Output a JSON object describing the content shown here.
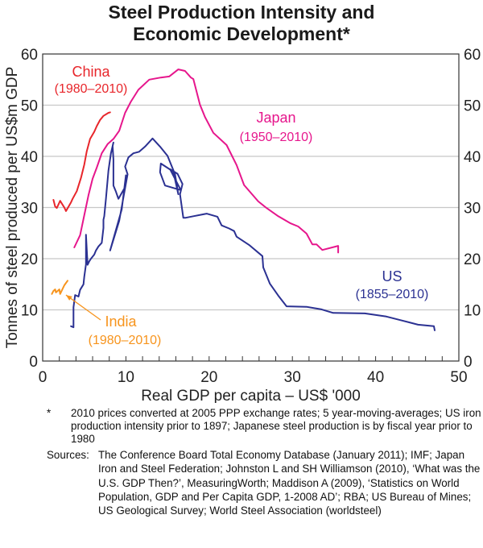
{
  "chart_data": {
    "type": "line",
    "title": "Steel Production Intensity and Economic Development*",
    "title_lines": [
      "Steel Production Intensity and",
      "Economic Development*"
    ],
    "xlabel": "Real GDP per capita – US$ '000",
    "ylabel": "Tonnes of steel produced per US$m GDP",
    "xlim": [
      0,
      50
    ],
    "ylim": [
      0,
      60
    ],
    "x_ticks": [
      0,
      10,
      20,
      30,
      40,
      50
    ],
    "x_minor_step": 2,
    "y_ticks": [
      0,
      10,
      20,
      30,
      40,
      50,
      60
    ],
    "grid": "horizontal",
    "right_axis_mirrors_left": true,
    "series": [
      {
        "name": "China",
        "label": "China",
        "period": "(1980–2010)",
        "color": "#e8262b",
        "points": [
          [
            1.3,
            31.5
          ],
          [
            1.5,
            30.2
          ],
          [
            1.7,
            29.9
          ],
          [
            2.1,
            31.3
          ],
          [
            2.6,
            30.0
          ],
          [
            2.8,
            29.3
          ],
          [
            3.4,
            31.0
          ],
          [
            3.6,
            31.7
          ],
          [
            4.1,
            33.2
          ],
          [
            4.6,
            35.8
          ],
          [
            5.0,
            38.4
          ],
          [
            5.3,
            41.0
          ],
          [
            5.7,
            43.4
          ],
          [
            6.2,
            44.8
          ],
          [
            6.5,
            45.9
          ],
          [
            6.9,
            47.1
          ],
          [
            7.3,
            47.9
          ],
          [
            7.9,
            48.5
          ],
          [
            8.1,
            48.6
          ]
        ]
      },
      {
        "name": "Japan",
        "label": "Japan",
        "period": "(1950–2010)",
        "color": "#e6168c",
        "points": [
          [
            3.8,
            22.2
          ],
          [
            4.5,
            24.6
          ],
          [
            5.0,
            28.5
          ],
          [
            5.5,
            32.4
          ],
          [
            6.0,
            35.6
          ],
          [
            6.5,
            37.8
          ],
          [
            7.1,
            40.6
          ],
          [
            7.8,
            42.4
          ],
          [
            8.5,
            43.4
          ],
          [
            9.2,
            45.0
          ],
          [
            9.9,
            48.5
          ],
          [
            10.6,
            50.7
          ],
          [
            11.5,
            53.0
          ],
          [
            12.8,
            55.0
          ],
          [
            14.2,
            55.4
          ],
          [
            15.2,
            55.6
          ],
          [
            16.3,
            57.0
          ],
          [
            17.1,
            56.7
          ],
          [
            17.8,
            55.4
          ],
          [
            18.1,
            55.1
          ],
          [
            18.9,
            50.1
          ],
          [
            19.5,
            47.7
          ],
          [
            20.5,
            44.6
          ],
          [
            22.1,
            42.2
          ],
          [
            23.3,
            38.3
          ],
          [
            24.2,
            34.4
          ],
          [
            25.9,
            31.2
          ],
          [
            26.9,
            29.9
          ],
          [
            28.3,
            28.3
          ],
          [
            29.8,
            26.9
          ],
          [
            30.7,
            26.3
          ],
          [
            31.7,
            24.9
          ],
          [
            32.4,
            22.8
          ],
          [
            32.9,
            22.8
          ],
          [
            33.6,
            21.7
          ],
          [
            35.5,
            22.5
          ],
          [
            35.5,
            21.2
          ]
        ]
      },
      {
        "name": "US",
        "label": "US",
        "period": "(1855–2010)",
        "color": "#2b3192",
        "points": [
          [
            3.4,
            6.8
          ],
          [
            3.7,
            6.6
          ],
          [
            3.7,
            10.5
          ],
          [
            3.9,
            12.9
          ],
          [
            4.3,
            12.6
          ],
          [
            4.5,
            13.9
          ],
          [
            4.9,
            15.0
          ],
          [
            5.0,
            16.5
          ],
          [
            5.2,
            18.9
          ],
          [
            5.2,
            21.9
          ],
          [
            5.2,
            24.7
          ],
          [
            5.4,
            18.8
          ],
          [
            5.6,
            19.5
          ],
          [
            5.8,
            20.0
          ],
          [
            6.2,
            20.8
          ],
          [
            6.4,
            21.6
          ],
          [
            6.7,
            22.4
          ],
          [
            7.1,
            23.1
          ],
          [
            7.3,
            26.0
          ],
          [
            7.3,
            27.6
          ],
          [
            7.4,
            28.3
          ],
          [
            7.6,
            31.7
          ],
          [
            7.9,
            37.2
          ],
          [
            8.2,
            40.6
          ],
          [
            8.5,
            42.7
          ],
          [
            8.4,
            42.0
          ],
          [
            8.5,
            39.4
          ],
          [
            8.5,
            34.3
          ],
          [
            8.8,
            33.1
          ],
          [
            9.1,
            31.7
          ],
          [
            9.9,
            34.0
          ],
          [
            10.0,
            36.3
          ],
          [
            9.5,
            29.6
          ],
          [
            8.1,
            21.6
          ],
          [
            9.2,
            27.4
          ],
          [
            10.2,
            36.5
          ],
          [
            9.9,
            38.0
          ],
          [
            10.3,
            39.8
          ],
          [
            10.9,
            40.6
          ],
          [
            11.6,
            40.9
          ],
          [
            12.3,
            41.9
          ],
          [
            13.2,
            43.5
          ],
          [
            14.1,
            41.9
          ],
          [
            15.0,
            40.1
          ],
          [
            15.9,
            36.5
          ],
          [
            16.3,
            32.6
          ],
          [
            15.7,
            37.0
          ],
          [
            14.2,
            38.6
          ],
          [
            14.1,
            36.9
          ],
          [
            14.7,
            34.3
          ],
          [
            16.6,
            33.4
          ],
          [
            15.3,
            37.5
          ],
          [
            16.2,
            36.6
          ],
          [
            16.8,
            34.6
          ],
          [
            16.5,
            32.6
          ],
          [
            16.9,
            28.0
          ],
          [
            17.2,
            28.0
          ],
          [
            18.1,
            28.3
          ],
          [
            19.7,
            28.8
          ],
          [
            21.0,
            28.2
          ],
          [
            21.5,
            26.5
          ],
          [
            22.4,
            25.9
          ],
          [
            23.0,
            25.4
          ],
          [
            23.3,
            24.3
          ],
          [
            24.8,
            22.7
          ],
          [
            26.4,
            20.5
          ],
          [
            26.5,
            18.3
          ],
          [
            27.3,
            15.1
          ],
          [
            28.3,
            12.8
          ],
          [
            29.3,
            10.7
          ],
          [
            31.7,
            10.6
          ],
          [
            33.5,
            10.1
          ],
          [
            34.9,
            9.4
          ],
          [
            38.7,
            9.3
          ],
          [
            41.3,
            8.7
          ],
          [
            43.2,
            7.9
          ],
          [
            45.1,
            7.1
          ],
          [
            47.0,
            6.8
          ],
          [
            47.1,
            6.0
          ]
        ]
      },
      {
        "name": "India",
        "label": "India",
        "period": "(1980–2010)",
        "color": "#f7941d",
        "points": [
          [
            1.1,
            13.1
          ],
          [
            1.3,
            13.7
          ],
          [
            1.5,
            14.0
          ],
          [
            1.6,
            13.4
          ],
          [
            1.8,
            13.7
          ],
          [
            2.0,
            14.0
          ],
          [
            2.1,
            13.1
          ],
          [
            2.6,
            14.8
          ],
          [
            3.0,
            15.7
          ]
        ],
        "annotation_arrow_from": [
          7.0,
          8.0
        ],
        "annotation_arrow_to": [
          2.8,
          12.9
        ]
      }
    ]
  },
  "notes": {
    "footnote_mark": "*",
    "footnote_text": "2010 prices converted at 2005 PPP exchange rates; 5 year-moving-averages; US iron production intensity prior to 1897; Japanese steel production is by fiscal year prior to 1980",
    "sources_label": "Sources:",
    "sources_text": "The Conference Board Total Economy Database (January 2011); IMF; Japan Iron and Steel Federation; Johnston L and SH Williamson (2010), ‘What was the U.S. GDP Then?’, MeasuringWorth; Maddison A (2009), ‘Statistics on World Population, GDP and Per Capita GDP, 1-2008 AD’;  RBA; US Bureau of Mines; US Geological Survey; World Steel Association (worldsteel)"
  }
}
